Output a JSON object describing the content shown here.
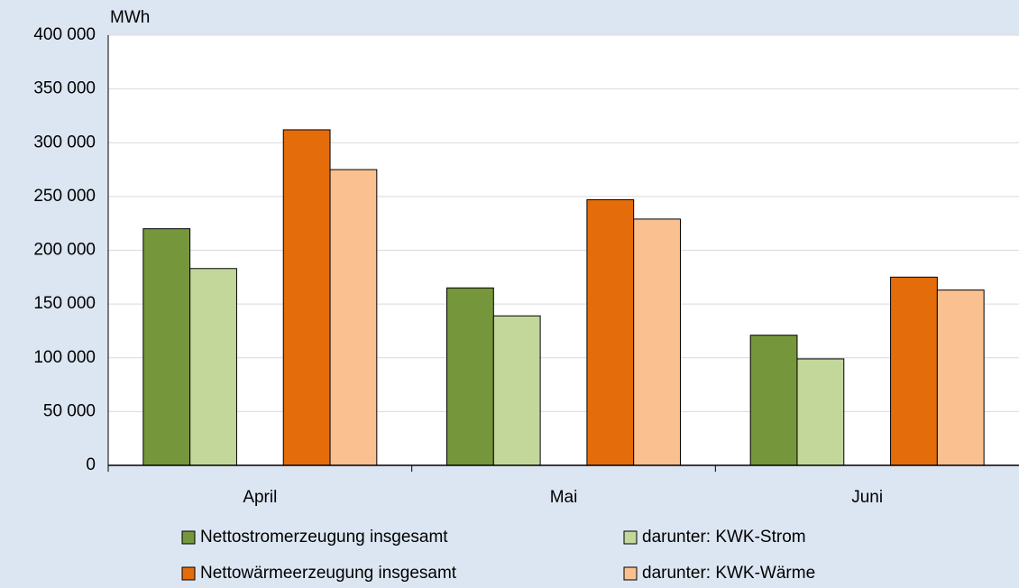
{
  "chart_data": {
    "type": "bar",
    "y_label": "MWh",
    "categories": [
      "April",
      "Mai",
      "Juni"
    ],
    "series": [
      {
        "name": "Nettostromerzeugung insgesamt",
        "color": "#76963c",
        "values": [
          220000,
          165000,
          121000
        ]
      },
      {
        "name": "darunter: KWK-Strom",
        "color": "#c4d79b",
        "values": [
          183000,
          139000,
          99000
        ]
      },
      {
        "name": "Nettowärmeerzeugung insgesamt",
        "color": "#e46c0a",
        "values": [
          312000,
          247000,
          175000
        ]
      },
      {
        "name": "darunter: KWK-Wärme",
        "color": "#fac090",
        "values": [
          275000,
          229000,
          163000
        ]
      }
    ],
    "ylim": [
      0,
      400000
    ],
    "yticks": [
      0,
      {
        "value": 50000,
        "label": "50 000"
      },
      {
        "value": 100000,
        "label": "100 000"
      },
      {
        "value": 150000,
        "label": "150 000"
      },
      {
        "value": 200000,
        "label": "200 000"
      },
      {
        "value": 250000,
        "label": "250 000"
      },
      {
        "value": 300000,
        "label": "300 000"
      },
      {
        "value": 350000,
        "label": "350 000"
      },
      {
        "value": 400000,
        "label": "400 000"
      }
    ],
    "grid": true
  }
}
